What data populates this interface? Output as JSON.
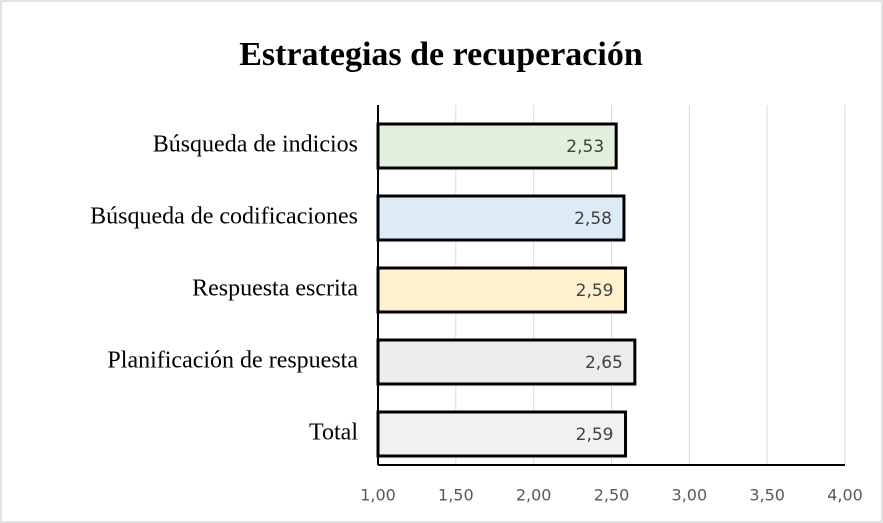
{
  "chart_data": {
    "type": "bar",
    "orientation": "horizontal",
    "title": "Estrategias de recuperación",
    "categories": [
      "Búsqueda de indicios",
      "Búsqueda de codificaciones",
      "Respuesta escrita",
      "Planificación de respuesta",
      "Total"
    ],
    "values": [
      2.53,
      2.58,
      2.59,
      2.65,
      2.59
    ],
    "value_labels": [
      "2,53",
      "2,58",
      "2,59",
      "2,65",
      "2,59"
    ],
    "colors": [
      "#e2efda",
      "#ddebf7",
      "#fff2cc",
      "#ededed",
      "#f2f2f2"
    ],
    "xlim": [
      1,
      4
    ],
    "xticks": [
      {
        "value": 1,
        "label": "1,00"
      },
      {
        "value": 1.5,
        "label": "1,50"
      },
      {
        "value": 2,
        "label": "2,00"
      },
      {
        "value": 2.5,
        "label": "2,50"
      },
      {
        "value": 3,
        "label": "3,00"
      },
      {
        "value": 3.5,
        "label": "3,50"
      },
      {
        "value": 4,
        "label": "4,00"
      }
    ],
    "grid": true
  }
}
